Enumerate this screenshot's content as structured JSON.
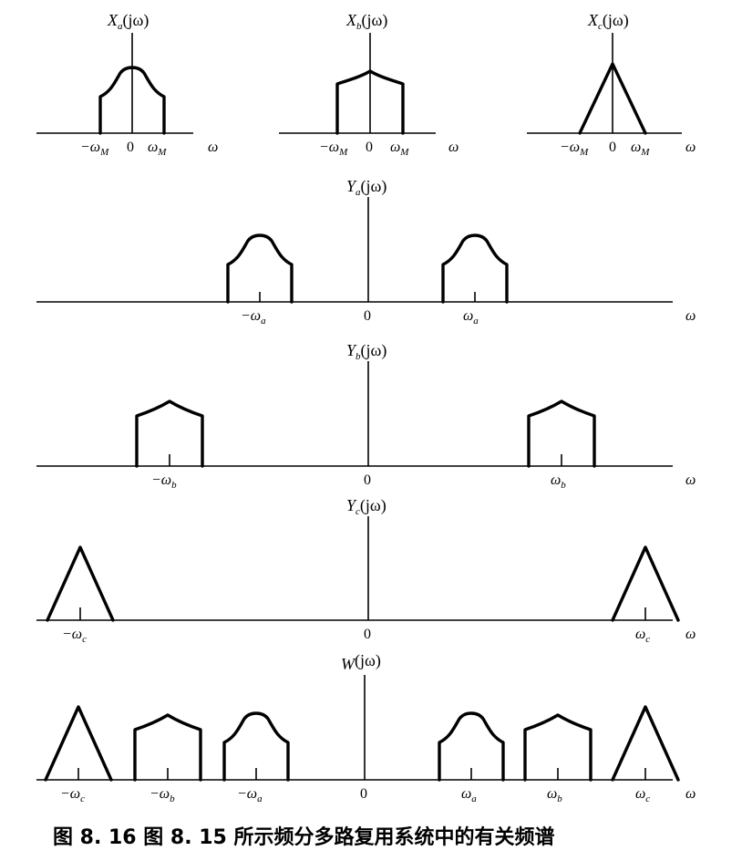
{
  "caption": "图 8. 16    图 8. 15 所示频分多路复用系统中的有关频谱",
  "panels": {
    "xa": {
      "title_main": "X",
      "title_sub": "a",
      "title_arg": "(jω)",
      "ticks": {
        "neg": "−ω",
        "neg_sub": "M",
        "zero": "0",
        "pos": "ω",
        "pos_sub": "M"
      },
      "axis": "ω"
    },
    "xb": {
      "title_main": "X",
      "title_sub": "b",
      "title_arg": "(jω)",
      "ticks": {
        "neg": "−ω",
        "neg_sub": "M",
        "zero": "0",
        "pos": "ω",
        "pos_sub": "M"
      },
      "axis": "ω"
    },
    "xc": {
      "title_main": "X",
      "title_sub": "c",
      "title_arg": "(jω)",
      "ticks": {
        "neg": "−ω",
        "neg_sub": "M",
        "zero": "0",
        "pos": "ω",
        "pos_sub": "M"
      },
      "axis": "ω"
    },
    "ya": {
      "title_main": "Y",
      "title_sub": "a",
      "title_arg": "(jω)",
      "ticks": {
        "neg": "−ω",
        "neg_sub": "a",
        "zero": "0",
        "pos": "ω",
        "pos_sub": "a"
      },
      "axis": "ω"
    },
    "yb": {
      "title_main": "Y",
      "title_sub": "b",
      "title_arg": "(jω)",
      "ticks": {
        "neg": "−ω",
        "neg_sub": "b",
        "zero": "0",
        "pos": "ω",
        "pos_sub": "b"
      },
      "axis": "ω"
    },
    "yc": {
      "title_main": "Y",
      "title_sub": "c",
      "title_arg": "(jω)",
      "ticks": {
        "neg": "−ω",
        "neg_sub": "c",
        "zero": "0",
        "pos": "ω",
        "pos_sub": "c"
      },
      "axis": "ω"
    },
    "w": {
      "title_main": "W",
      "title_sub": "",
      "title_arg": "(jω)",
      "ticks": {
        "nc": "−ω",
        "nc_sub": "c",
        "nb": "−ω",
        "nb_sub": "b",
        "na": "−ω",
        "na_sub": "a",
        "zero": "0",
        "pa": "ω",
        "pa_sub": "a",
        "pb": "ω",
        "pb_sub": "b",
        "pc": "ω",
        "pc_sub": "c"
      },
      "axis": "ω"
    }
  }
}
